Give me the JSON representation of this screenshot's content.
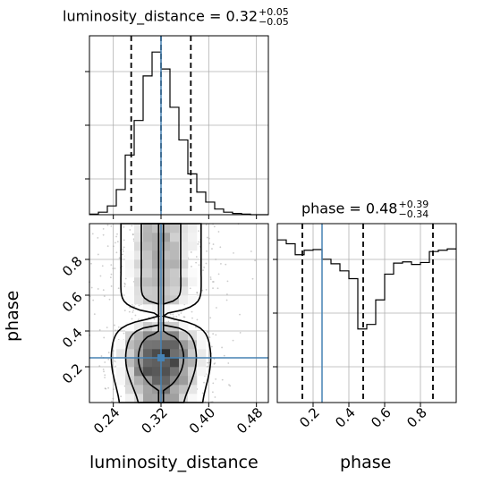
{
  "chart_data": {
    "type": "corner",
    "parameters": [
      "luminosity_distance",
      "phase"
    ],
    "truths": {
      "luminosity_distance": 0.32,
      "phase": 0.25
    },
    "panels": {
      "luminosity_distance": {
        "title_prefix": "luminosity_distance = 0.32",
        "title_plus": "+0.05",
        "title_minus": "−0.05",
        "median": 0.32,
        "quantiles": [
          0.27,
          0.32,
          0.37
        ],
        "xlim": [
          0.2,
          0.5
        ],
        "xticks": [
          "0.24",
          "0.32",
          "0.40",
          "0.48"
        ],
        "xlabel": "luminosity_distance",
        "hist_type": "histogram",
        "bin_edges": [
          0.2,
          0.215,
          0.23,
          0.245,
          0.26,
          0.275,
          0.29,
          0.305,
          0.32,
          0.335,
          0.35,
          0.365,
          0.38,
          0.395,
          0.41,
          0.425,
          0.44,
          0.455,
          0.47,
          0.485,
          0.5
        ],
        "counts": [
          1,
          4,
          14,
          40,
          95,
          150,
          221,
          259,
          232,
          171,
          119,
          65,
          36,
          20,
          9,
          4,
          2,
          1,
          0,
          0
        ]
      },
      "phase": {
        "title_prefix": "phase = 0.48",
        "title_plus": "+0.39",
        "title_minus": "−0.34",
        "median": 0.48,
        "quantiles": [
          0.14,
          0.48,
          0.87
        ],
        "xlim": [
          0.0,
          1.0
        ],
        "xticks": [
          "0.2",
          "0.4",
          "0.6",
          "0.8"
        ],
        "xlabel": "phase",
        "bin_edges": [
          0.0,
          0.05,
          0.1,
          0.15,
          0.2,
          0.25,
          0.3,
          0.35,
          0.4,
          0.45,
          0.5,
          0.55,
          0.6,
          0.65,
          0.7,
          0.75,
          0.8,
          0.85,
          0.9,
          0.95,
          1.0
        ],
        "counts": [
          252,
          246,
          229,
          236,
          237,
          222,
          215,
          204,
          192,
          114,
          121,
          159,
          199,
          216,
          218,
          214,
          217,
          234,
          236,
          238
        ]
      },
      "joint": {
        "ylabel": "phase",
        "ylim": [
          0.0,
          1.0
        ],
        "yticks": [
          "0.2",
          "0.4",
          "0.6",
          "0.8"
        ]
      }
    },
    "colors": {
      "truth": "#4682b4",
      "hist": "#000000",
      "quantile": "#000000",
      "grid": "#b0b0b0",
      "points": "#9a9a9a"
    },
    "grid": true
  }
}
